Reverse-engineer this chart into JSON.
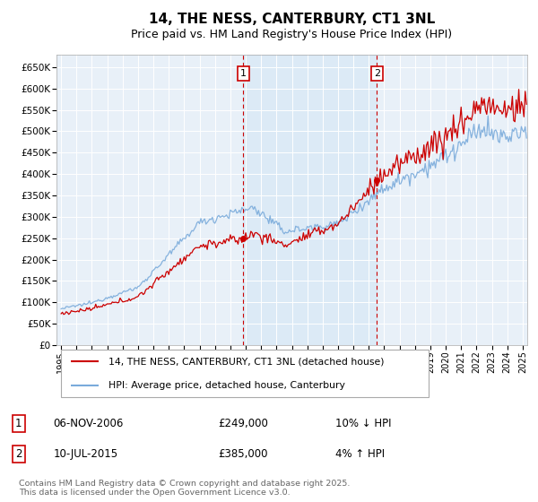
{
  "title": "14, THE NESS, CANTERBURY, CT1 3NL",
  "subtitle": "Price paid vs. HM Land Registry's House Price Index (HPI)",
  "title_fontsize": 11,
  "subtitle_fontsize": 9,
  "background_color": "#ffffff",
  "plot_bg_color": "#e8f0f8",
  "plot_bg_color2": "#d0e4f7",
  "grid_color": "#ffffff",
  "line1_color": "#cc0000",
  "line2_color": "#7aabdb",
  "sale1_date_num": 2006.85,
  "sale1_price": 249000,
  "sale2_date_num": 2015.53,
  "sale2_price": 385000,
  "vline_color": "#cc0000",
  "annotation_box_color": "#cc0000",
  "ylim": [
    0,
    680000
  ],
  "xlim_start": 1994.7,
  "xlim_end": 2025.3,
  "ytick_labels": [
    "£0",
    "£50K",
    "£100K",
    "£150K",
    "£200K",
    "£250K",
    "£300K",
    "£350K",
    "£400K",
    "£450K",
    "£500K",
    "£550K",
    "£600K",
    "£650K"
  ],
  "ytick_vals": [
    0,
    50000,
    100000,
    150000,
    200000,
    250000,
    300000,
    350000,
    400000,
    450000,
    500000,
    550000,
    600000,
    650000
  ],
  "xtick_years": [
    1995,
    1996,
    1997,
    1998,
    1999,
    2000,
    2001,
    2002,
    2003,
    2004,
    2005,
    2006,
    2007,
    2008,
    2009,
    2010,
    2011,
    2012,
    2013,
    2014,
    2015,
    2016,
    2017,
    2018,
    2019,
    2020,
    2021,
    2022,
    2023,
    2024,
    2025
  ],
  "legend_label1": "14, THE NESS, CANTERBURY, CT1 3NL (detached house)",
  "legend_label2": "HPI: Average price, detached house, Canterbury",
  "annotation1_label": "1",
  "annotation1_text1": "06-NOV-2006",
  "annotation1_text2": "£249,000",
  "annotation1_text3": "10% ↓ HPI",
  "annotation2_label": "2",
  "annotation2_text1": "10-JUL-2015",
  "annotation2_text2": "£385,000",
  "annotation2_text3": "4% ↑ HPI",
  "footer_text": "Contains HM Land Registry data © Crown copyright and database right 2025.\nThis data is licensed under the Open Government Licence v3.0."
}
